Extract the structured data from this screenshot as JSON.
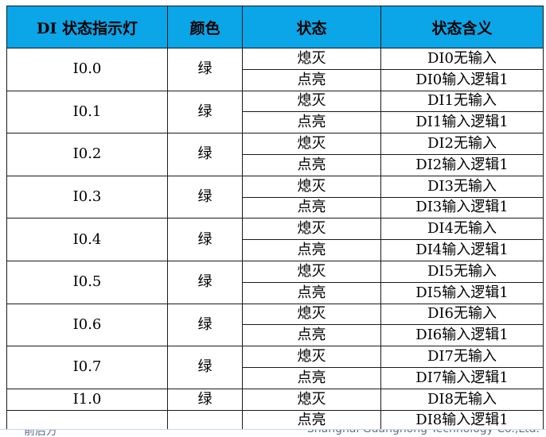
{
  "table": {
    "headers": [
      "DI 状态指示灯",
      "颜色",
      "状态",
      "状态含义"
    ],
    "groups": [
      {
        "indicator": "I0.0",
        "color": "绿",
        "rows": [
          {
            "state": "熄灭",
            "meaning": "DI0无输入"
          },
          {
            "state": "点亮",
            "meaning": "DI0输入逻辑1"
          }
        ]
      },
      {
        "indicator": "I0.1",
        "color": "绿",
        "rows": [
          {
            "state": "熄灭",
            "meaning": "DI1无输入"
          },
          {
            "state": "点亮",
            "meaning": "DI1输入逻辑1"
          }
        ]
      },
      {
        "indicator": "I0.2",
        "color": "绿",
        "rows": [
          {
            "state": "熄灭",
            "meaning": "DI2无输入"
          },
          {
            "state": "点亮",
            "meaning": "DI2输入逻辑1"
          }
        ]
      },
      {
        "indicator": "I0.3",
        "color": "绿",
        "rows": [
          {
            "state": "熄灭",
            "meaning": "DI3无输入"
          },
          {
            "state": "点亮",
            "meaning": "DI3输入逻辑1"
          }
        ]
      },
      {
        "indicator": "I0.4",
        "color": "绿",
        "rows": [
          {
            "state": "熄灭",
            "meaning": "DI4无输入"
          },
          {
            "state": "点亮",
            "meaning": "DI4输入逻辑1"
          }
        ]
      },
      {
        "indicator": "I0.5",
        "color": "绿",
        "rows": [
          {
            "state": "熄灭",
            "meaning": "DI5无输入"
          },
          {
            "state": "点亮",
            "meaning": "DI5输入逻辑1"
          }
        ]
      },
      {
        "indicator": "I0.6",
        "color": "绿",
        "rows": [
          {
            "state": "熄灭",
            "meaning": "DI6无输入"
          },
          {
            "state": "点亮",
            "meaning": "DI6输入逻辑1"
          }
        ]
      },
      {
        "indicator": "I0.7",
        "color": "绿",
        "rows": [
          {
            "state": "熄灭",
            "meaning": "DI7无输入"
          },
          {
            "state": "点亮",
            "meaning": "DI7输入逻辑1"
          }
        ]
      },
      {
        "indicator": "I1.0",
        "color": "绿",
        "rows": [
          {
            "state": "熄灭",
            "meaning": "DI8无输入"
          }
        ]
      }
    ],
    "continuation_row": {
      "indicator": "",
      "color": "",
      "state": "点亮",
      "meaning": "DI8输入逻辑1"
    }
  },
  "footer": {
    "left": "前后方",
    "right": "Shanghai Guanghong Technology Co.,Ltd."
  },
  "colors": {
    "header_background": "#0aa6e8",
    "border": "#1a1a1a",
    "footer_text": "#5c6d8c"
  }
}
